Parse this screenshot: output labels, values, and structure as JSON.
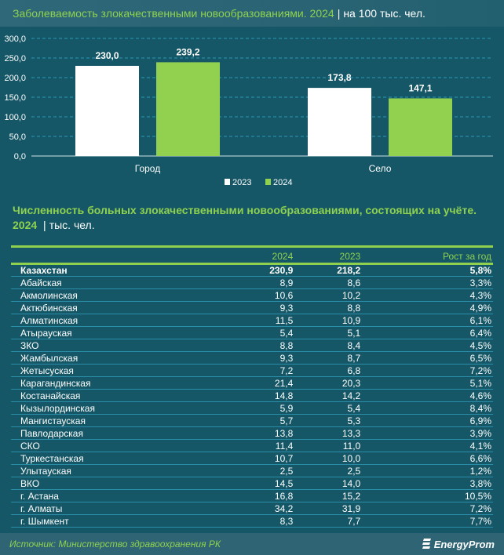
{
  "chart_data": {
    "type": "bar",
    "title": "Заболеваемость злокачественными новообразованиями. 2024",
    "subtitle": "на 100 тыс. чел.",
    "categories": [
      "Город",
      "Село"
    ],
    "series": [
      {
        "name": "2023",
        "color": "#ffffff",
        "values": [
          230.0,
          173.8
        ],
        "labels": [
          "230,0",
          "173,8"
        ]
      },
      {
        "name": "2024",
        "color": "#92d050",
        "values": [
          239.2,
          147.1
        ],
        "labels": [
          "239,2",
          "147,1"
        ]
      }
    ],
    "ylim": [
      0,
      300
    ],
    "yticks": [
      0,
      50,
      100,
      150,
      200,
      250,
      300
    ],
    "ytick_labels": [
      "0,0",
      "50,0",
      "100,0",
      "150,0",
      "200,0",
      "250,0",
      "300,0"
    ],
    "grid": true,
    "legend": "bottom-center"
  },
  "table": {
    "title": "Численность больных злокачественными новообразованиями, состоящих на учёте. 2024",
    "unit": "тыс. чел.",
    "headers": [
      "",
      "2024",
      "2023",
      "Рост за год"
    ],
    "rows": [
      [
        "Казахстан",
        "230,9",
        "218,2",
        "5,8%"
      ],
      [
        "Абайская",
        "8,9",
        "8,6",
        "3,3%"
      ],
      [
        "Акмолинская",
        "10,6",
        "10,2",
        "4,3%"
      ],
      [
        "Актюбинская",
        "9,3",
        "8,8",
        "4,9%"
      ],
      [
        "Алматинская",
        "11,5",
        "10,9",
        "6,1%"
      ],
      [
        "Атырауская",
        "5,4",
        "5,1",
        "6,4%"
      ],
      [
        "ЗКО",
        "8,8",
        "8,4",
        "4,5%"
      ],
      [
        "Жамбылская",
        "9,3",
        "8,7",
        "6,5%"
      ],
      [
        "Жетысуская",
        "7,2",
        "6,8",
        "7,2%"
      ],
      [
        "Карагандинская",
        "21,4",
        "20,3",
        "5,1%"
      ],
      [
        "Костанайская",
        "14,8",
        "14,2",
        "4,6%"
      ],
      [
        "Кызылординская",
        "5,9",
        "5,4",
        "8,4%"
      ],
      [
        "Мангистауская",
        "5,7",
        "5,3",
        "6,9%"
      ],
      [
        "Павлодарская",
        "13,8",
        "13,3",
        "3,9%"
      ],
      [
        "СКО",
        "11,4",
        "11,0",
        "4,1%"
      ],
      [
        "Туркестанская",
        "10,7",
        "10,0",
        "6,6%"
      ],
      [
        "Улытауская",
        "2,5",
        "2,5",
        "1,2%"
      ],
      [
        "ВКО",
        "14,5",
        "14,0",
        "3,8%"
      ],
      [
        "г. Астана",
        "16,8",
        "15,2",
        "10,5%"
      ],
      [
        "г. Алматы",
        "34,2",
        "31,9",
        "7,2%"
      ],
      [
        "г. Шымкент",
        "8,3",
        "7,7",
        "7,7%"
      ]
    ]
  },
  "footer": {
    "source": "Источник: Министерство здравоохранения РК",
    "logo": "EnergyProm"
  }
}
